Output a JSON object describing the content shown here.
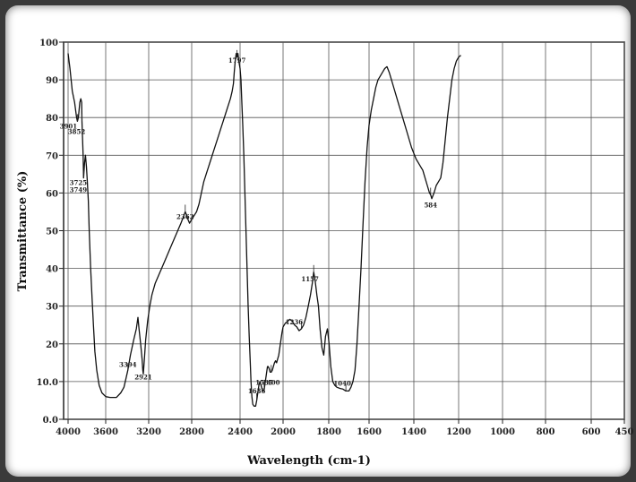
{
  "chart_data": {
    "type": "line",
    "title": "",
    "xlabel": "Wavelength (cm-1)",
    "ylabel": "Transmittance  (%)",
    "xlim": [
      4000,
      450
    ],
    "ylim": [
      0,
      100
    ],
    "grid": true,
    "x_ticks": [
      {
        "value": 4000,
        "label": "4000"
      },
      {
        "value": 3600,
        "label": "3600"
      },
      {
        "value": 3200,
        "label": "3200"
      },
      {
        "value": 2800,
        "label": "2800"
      },
      {
        "value": 2400,
        "label": "2400"
      },
      {
        "value": 2000,
        "label": "2000"
      },
      {
        "value": 1800,
        "label": "1800"
      },
      {
        "value": 1600,
        "label": "1600"
      },
      {
        "value": 1400,
        "label": "1400"
      },
      {
        "value": 1200,
        "label": "1200"
      },
      {
        "value": 1000,
        "label": "1000"
      },
      {
        "value": 800,
        "label": "800"
      },
      {
        "value": 600,
        "label": "600"
      },
      {
        "value": 450,
        "label": "450"
      }
    ],
    "y_ticks": [
      {
        "value": 0,
        "label": "0.0"
      },
      {
        "value": 10,
        "label": "10.0"
      },
      {
        "value": 20,
        "label": "20"
      },
      {
        "value": 30,
        "label": "30"
      },
      {
        "value": 40,
        "label": "40"
      },
      {
        "value": 50,
        "label": "50"
      },
      {
        "value": 60,
        "label": "60"
      },
      {
        "value": 70,
        "label": "70"
      },
      {
        "value": 80,
        "label": "80"
      },
      {
        "value": 90,
        "label": "90"
      },
      {
        "value": 100,
        "label": "100"
      }
    ],
    "series": [
      {
        "color": "#111111",
        "points": [
          [
            4000,
            97
          ],
          [
            3980,
            93
          ],
          [
            3955,
            87
          ],
          [
            3930,
            84
          ],
          [
            3910,
            80
          ],
          [
            3901,
            79
          ],
          [
            3890,
            80
          ],
          [
            3875,
            84
          ],
          [
            3865,
            85
          ],
          [
            3855,
            84
          ],
          [
            3852,
            79
          ],
          [
            3840,
            70
          ],
          [
            3835,
            64
          ],
          [
            3825,
            68
          ],
          [
            3815,
            70
          ],
          [
            3805,
            67
          ],
          [
            3795,
            63
          ],
          [
            3785,
            58
          ],
          [
            3775,
            50
          ],
          [
            3760,
            40
          ],
          [
            3745,
            32
          ],
          [
            3730,
            25
          ],
          [
            3715,
            18
          ],
          [
            3695,
            13
          ],
          [
            3670,
            9
          ],
          [
            3640,
            7
          ],
          [
            3600,
            6
          ],
          [
            3560,
            5.8
          ],
          [
            3500,
            5.8
          ],
          [
            3460,
            7
          ],
          [
            3430,
            8.5
          ],
          [
            3410,
            11
          ],
          [
            3394,
            13
          ],
          [
            3370,
            17
          ],
          [
            3340,
            21
          ],
          [
            3315,
            24
          ],
          [
            3300,
            27
          ],
          [
            3290,
            24
          ],
          [
            3275,
            20
          ],
          [
            3262,
            16
          ],
          [
            3255,
            13
          ],
          [
            3250,
            12
          ],
          [
            3240,
            16
          ],
          [
            3228,
            21
          ],
          [
            3210,
            26
          ],
          [
            3190,
            30
          ],
          [
            3170,
            33
          ],
          [
            3140,
            36
          ],
          [
            3110,
            38
          ],
          [
            3080,
            40
          ],
          [
            3050,
            42
          ],
          [
            3020,
            44
          ],
          [
            2990,
            46
          ],
          [
            2960,
            48
          ],
          [
            2930,
            50
          ],
          [
            2900,
            52
          ],
          [
            2880,
            53.5
          ],
          [
            2860,
            55
          ],
          [
            2845,
            54
          ],
          [
            2835,
            53
          ],
          [
            2820,
            52
          ],
          [
            2800,
            53
          ],
          [
            2780,
            54
          ],
          [
            2760,
            55
          ],
          [
            2740,
            57
          ],
          [
            2720,
            60
          ],
          [
            2700,
            63
          ],
          [
            2680,
            65
          ],
          [
            2660,
            67
          ],
          [
            2640,
            69
          ],
          [
            2620,
            71
          ],
          [
            2600,
            73
          ],
          [
            2580,
            75
          ],
          [
            2560,
            77
          ],
          [
            2540,
            79
          ],
          [
            2520,
            81
          ],
          [
            2500,
            83
          ],
          [
            2480,
            85
          ],
          [
            2465,
            87
          ],
          [
            2455,
            89
          ],
          [
            2448,
            92
          ],
          [
            2440,
            95
          ],
          [
            2432,
            97
          ],
          [
            2425,
            96
          ],
          [
            2418,
            97
          ],
          [
            2410,
            95
          ],
          [
            2400,
            93
          ],
          [
            2392,
            90
          ],
          [
            2385,
            85
          ],
          [
            2375,
            78
          ],
          [
            2365,
            70
          ],
          [
            2355,
            60
          ],
          [
            2345,
            50
          ],
          [
            2335,
            40
          ],
          [
            2325,
            30
          ],
          [
            2315,
            22
          ],
          [
            2305,
            15
          ],
          [
            2298,
            10
          ],
          [
            2290,
            6
          ],
          [
            2282,
            4
          ],
          [
            2270,
            3.5
          ],
          [
            2255,
            3.5
          ],
          [
            2245,
            5
          ],
          [
            2235,
            7
          ],
          [
            2225,
            9
          ],
          [
            2215,
            10
          ],
          [
            2205,
            9
          ],
          [
            2195,
            8
          ],
          [
            2185,
            7.5
          ],
          [
            2175,
            8
          ],
          [
            2165,
            10
          ],
          [
            2155,
            12
          ],
          [
            2145,
            14
          ],
          [
            2138,
            14
          ],
          [
            2130,
            13.5
          ],
          [
            2120,
            12.5
          ],
          [
            2110,
            12.5
          ],
          [
            2100,
            13
          ],
          [
            2090,
            14
          ],
          [
            2080,
            15
          ],
          [
            2070,
            15.5
          ],
          [
            2060,
            15
          ],
          [
            2050,
            16
          ],
          [
            2040,
            17
          ],
          [
            2030,
            19
          ],
          [
            2020,
            21
          ],
          [
            2010,
            23
          ],
          [
            2000,
            24.5
          ],
          [
            1990,
            25.5
          ],
          [
            1980,
            26
          ],
          [
            1970,
            26.5
          ],
          [
            1960,
            26
          ],
          [
            1950,
            25
          ],
          [
            1940,
            24.5
          ],
          [
            1930,
            23.5
          ],
          [
            1920,
            24
          ],
          [
            1910,
            25
          ],
          [
            1900,
            27
          ],
          [
            1890,
            30
          ],
          [
            1880,
            33
          ],
          [
            1872,
            36
          ],
          [
            1866,
            39
          ],
          [
            1860,
            37
          ],
          [
            1852,
            33
          ],
          [
            1845,
            30
          ],
          [
            1838,
            24
          ],
          [
            1830,
            19
          ],
          [
            1822,
            17
          ],
          [
            1814,
            22
          ],
          [
            1806,
            24
          ],
          [
            1798,
            20
          ],
          [
            1790,
            14
          ],
          [
            1780,
            10
          ],
          [
            1770,
            9
          ],
          [
            1760,
            8.5
          ],
          [
            1745,
            8.2
          ],
          [
            1730,
            8
          ],
          [
            1715,
            7.5
          ],
          [
            1700,
            7.5
          ],
          [
            1690,
            8.5
          ],
          [
            1680,
            10
          ],
          [
            1670,
            13
          ],
          [
            1660,
            20
          ],
          [
            1650,
            30
          ],
          [
            1640,
            40
          ],
          [
            1630,
            52
          ],
          [
            1620,
            63
          ],
          [
            1610,
            72
          ],
          [
            1600,
            78
          ],
          [
            1590,
            82
          ],
          [
            1580,
            85
          ],
          [
            1570,
            88
          ],
          [
            1560,
            90
          ],
          [
            1550,
            91
          ],
          [
            1540,
            92
          ],
          [
            1530,
            93
          ],
          [
            1520,
            93.5
          ],
          [
            1510,
            92
          ],
          [
            1500,
            90
          ],
          [
            1490,
            88
          ],
          [
            1480,
            86
          ],
          [
            1470,
            84
          ],
          [
            1460,
            82
          ],
          [
            1450,
            80
          ],
          [
            1440,
            78
          ],
          [
            1430,
            76
          ],
          [
            1420,
            74
          ],
          [
            1410,
            72
          ],
          [
            1400,
            70.5
          ],
          [
            1390,
            69
          ],
          [
            1380,
            68
          ],
          [
            1370,
            67
          ],
          [
            1360,
            66
          ],
          [
            1350,
            64
          ],
          [
            1340,
            62
          ],
          [
            1330,
            60
          ],
          [
            1325,
            59.5
          ],
          [
            1320,
            58.5
          ],
          [
            1310,
            60
          ],
          [
            1300,
            62
          ],
          [
            1290,
            63
          ],
          [
            1280,
            64
          ],
          [
            1270,
            68
          ],
          [
            1260,
            74
          ],
          [
            1250,
            80
          ],
          [
            1240,
            85
          ],
          [
            1230,
            90
          ],
          [
            1220,
            93
          ],
          [
            1210,
            95
          ],
          [
            1200,
            96
          ],
          [
            1190,
            96.5
          ]
        ]
      }
    ],
    "annotations": [
      {
        "x": 3901,
        "y": 79,
        "label": "3901"
      },
      {
        "x": 3852,
        "y": 79,
        "label": "3852"
      },
      {
        "x": 3835,
        "y": 64,
        "label": "3725"
      },
      {
        "x": 3835,
        "y": 64,
        "label": "3749"
      },
      {
        "x": 3394,
        "y": 13,
        "label": "3394"
      },
      {
        "x": 3250,
        "y": 12,
        "label": "2921"
      },
      {
        "x": 2860,
        "y": 55,
        "label": "2362"
      },
      {
        "x": 2425,
        "y": 96,
        "label": "1797"
      },
      {
        "x": 2245,
        "y": 5,
        "label": "1636"
      },
      {
        "x": 2175,
        "y": 8,
        "label": "1535"
      },
      {
        "x": 2110,
        "y": 12.5,
        "label": "1400"
      },
      {
        "x": 1920,
        "y": 24,
        "label": "1236"
      },
      {
        "x": 1866,
        "y": 39,
        "label": "1157"
      },
      {
        "x": 1715,
        "y": 7.5,
        "label": "1040"
      },
      {
        "x": 1325,
        "y": 59.5,
        "label": "584"
      }
    ]
  }
}
